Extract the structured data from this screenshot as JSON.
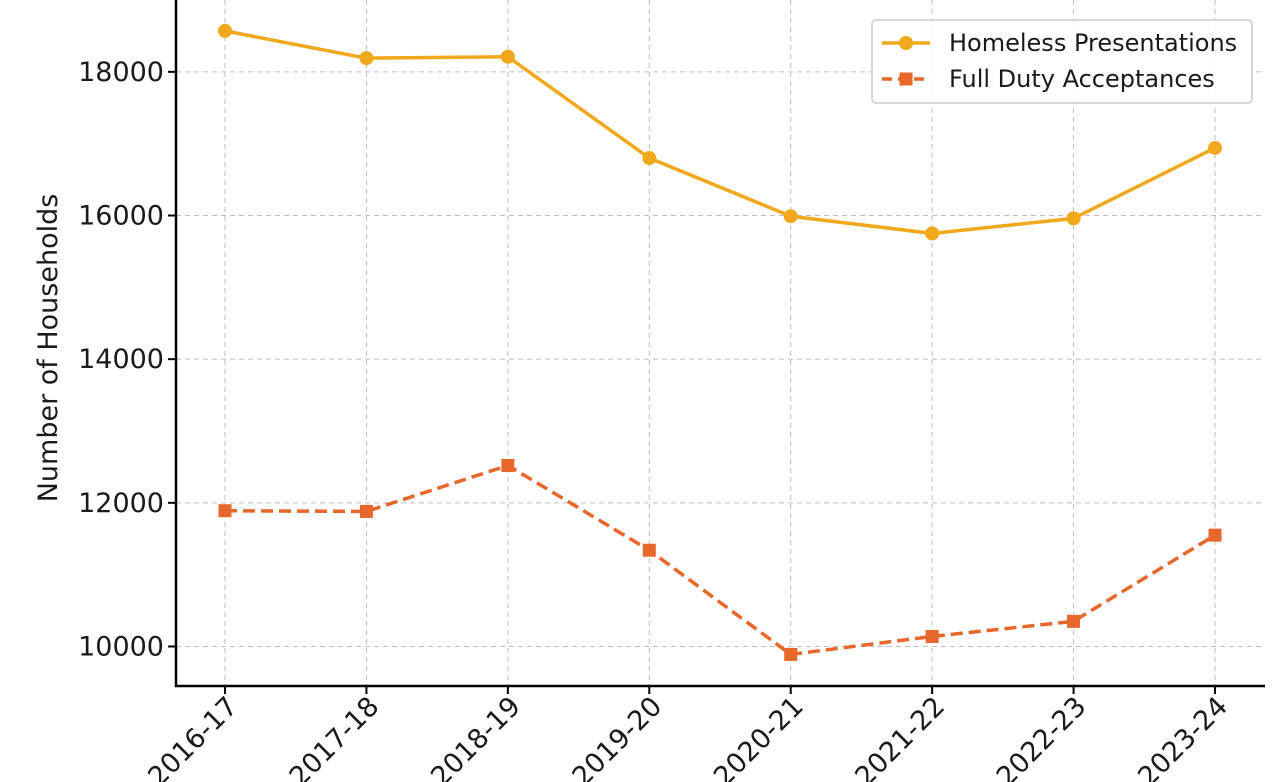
{
  "chart_data": {
    "type": "line",
    "categories": [
      "2016-17",
      "2017-18",
      "2018-19",
      "2019-20",
      "2020-21",
      "2021-22",
      "2022-23",
      "2023-24"
    ],
    "series": [
      {
        "name": "Homeless Presentations",
        "values": [
          18570,
          18190,
          18210,
          16800,
          15990,
          15750,
          15960,
          16940
        ],
        "color": "#f2a81d",
        "marker": "circle",
        "line_style": "solid"
      },
      {
        "name": "Full Duty Acceptances",
        "values": [
          11890,
          11880,
          12520,
          11340,
          9890,
          10140,
          10350,
          11550
        ],
        "color": "#e8672a",
        "marker": "square",
        "line_style": "dashed"
      }
    ],
    "ylabel": "Number of Households",
    "xlabel": "",
    "ylim": [
      9450,
      19000
    ],
    "yticks": [
      10000,
      12000,
      14000,
      16000,
      18000
    ],
    "grid": true,
    "legend_position": "top-right"
  }
}
